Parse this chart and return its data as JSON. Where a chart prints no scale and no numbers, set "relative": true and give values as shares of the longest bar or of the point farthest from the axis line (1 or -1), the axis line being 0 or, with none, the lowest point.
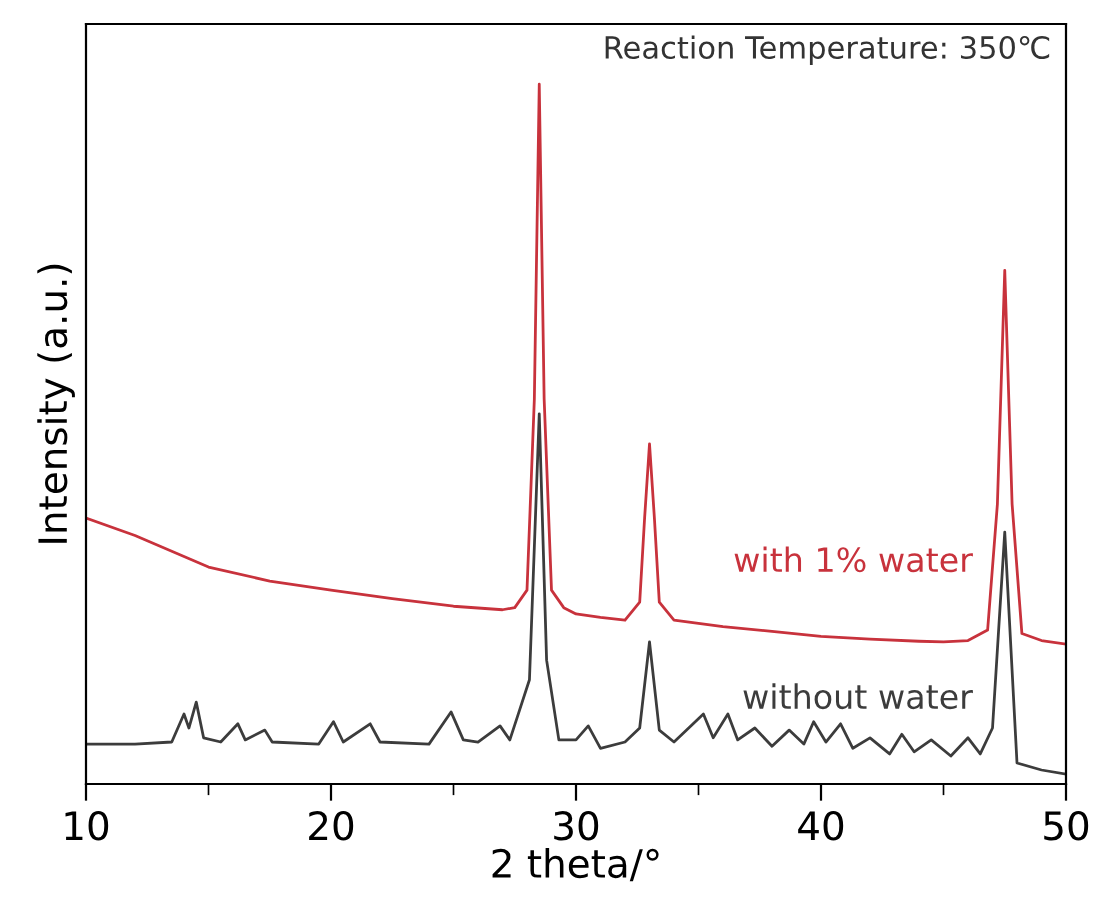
{
  "chart_data": {
    "type": "line",
    "relative": true,
    "xlabel": "2 theta/°",
    "ylabel": "Intensity (a.u.)",
    "xlim": [
      10,
      50
    ],
    "xticks": [
      10,
      20,
      30,
      40,
      50
    ],
    "grid": false,
    "legend": false,
    "marker": "none",
    "line_style": "solid",
    "annotations": [
      "Reaction Temperature: 350℃"
    ],
    "series": [
      {
        "name": "with 1% water",
        "color": "#c8323c",
        "x": [
          10,
          12,
          15,
          17.5,
          20,
          22.5,
          25,
          27,
          27.5,
          28.0,
          28.3,
          28.5,
          28.7,
          29.0,
          29.5,
          30,
          31,
          32,
          32.6,
          32.8,
          33.0,
          33.2,
          33.4,
          34,
          36,
          38,
          40,
          42,
          44,
          45,
          46,
          46.8,
          47.2,
          47.5,
          47.8,
          48.2,
          49,
          50
        ],
        "values": [
          0.38,
          0.355,
          0.31,
          0.29,
          0.277,
          0.265,
          0.254,
          0.249,
          0.252,
          0.277,
          0.55,
          1.0,
          0.55,
          0.277,
          0.252,
          0.243,
          0.238,
          0.234,
          0.26,
          0.38,
          0.486,
          0.38,
          0.26,
          0.234,
          0.225,
          0.218,
          0.211,
          0.207,
          0.204,
          0.203,
          0.205,
          0.22,
          0.4,
          0.734,
          0.4,
          0.215,
          0.205,
          0.2
        ]
      },
      {
        "name": "without water",
        "color": "#3c3c3c",
        "x": [
          10,
          12,
          13.5,
          14.0,
          14.2,
          14.5,
          14.8,
          15.5,
          16.2,
          16.5,
          17.3,
          17.6,
          19.5,
          20.1,
          20.5,
          21.6,
          22,
          24,
          24.9,
          25.4,
          26,
          26.9,
          27.3,
          27.7,
          28.1,
          28.5,
          28.8,
          29.3,
          30,
          30.5,
          31,
          32,
          32.6,
          33.0,
          33.4,
          34,
          35.2,
          35.6,
          36.2,
          36.6,
          37.3,
          38,
          38.7,
          39.3,
          39.7,
          40.2,
          40.8,
          41.3,
          42,
          42.8,
          43.3,
          43.8,
          44.5,
          45.3,
          46.0,
          46.5,
          47.0,
          47.5,
          48.0,
          49,
          50
        ],
        "values": [
          0.057,
          0.057,
          0.06,
          0.1,
          0.08,
          0.117,
          0.066,
          0.06,
          0.086,
          0.063,
          0.077,
          0.06,
          0.057,
          0.089,
          0.06,
          0.086,
          0.06,
          0.057,
          0.103,
          0.063,
          0.06,
          0.083,
          0.063,
          0.106,
          0.149,
          0.529,
          0.177,
          0.063,
          0.063,
          0.083,
          0.051,
          0.06,
          0.08,
          0.203,
          0.077,
          0.06,
          0.1,
          0.066,
          0.1,
          0.063,
          0.08,
          0.054,
          0.077,
          0.057,
          0.089,
          0.06,
          0.086,
          0.051,
          0.066,
          0.043,
          0.071,
          0.046,
          0.063,
          0.04,
          0.066,
          0.043,
          0.08,
          0.36,
          0.03,
          0.02,
          0.014
        ]
      }
    ]
  }
}
